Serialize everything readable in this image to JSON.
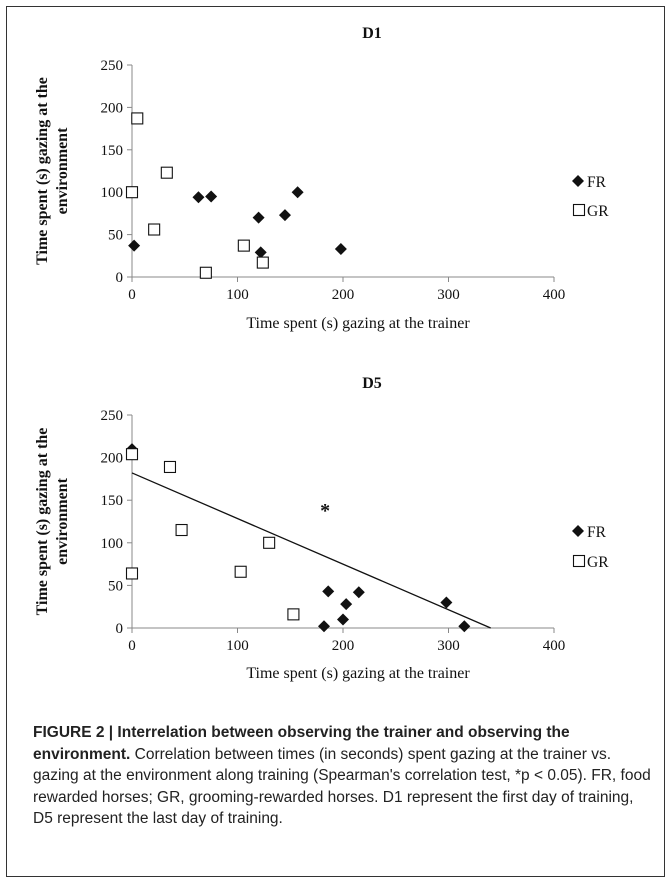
{
  "chart_data": [
    {
      "type": "scatter",
      "title": "D1",
      "xlabel": "Time spent (s) gazing at the trainer",
      "ylabel_lines": [
        "Time spent (s) gazing at the",
        "environment"
      ],
      "xlim": [
        0,
        400
      ],
      "ylim": [
        0,
        250
      ],
      "xticks": [
        0,
        100,
        200,
        300,
        400
      ],
      "yticks": [
        0,
        50,
        100,
        150,
        200,
        250
      ],
      "legend_position": "right",
      "annotation": "",
      "trendline": null,
      "series": [
        {
          "name": "FR",
          "marker": "filled-diamond",
          "points": [
            [
              2,
              37
            ],
            [
              63,
              94
            ],
            [
              75,
              95
            ],
            [
              120,
              70
            ],
            [
              122,
              29
            ],
            [
              145,
              73
            ],
            [
              157,
              100
            ],
            [
              198,
              33
            ]
          ]
        },
        {
          "name": "GR",
          "marker": "open-square",
          "points": [
            [
              5,
              187
            ],
            [
              0,
              100
            ],
            [
              33,
              123
            ],
            [
              21,
              56
            ],
            [
              70,
              5
            ],
            [
              106,
              37
            ],
            [
              124,
              17
            ]
          ]
        }
      ]
    },
    {
      "type": "scatter",
      "title": "D5",
      "xlabel": "Time spent (s) gazing at the trainer",
      "ylabel_lines": [
        "Time spent (s) gazing at the",
        "environment"
      ],
      "xlim": [
        0,
        400
      ],
      "ylim": [
        0,
        250
      ],
      "xticks": [
        0,
        100,
        200,
        300,
        400
      ],
      "yticks": [
        0,
        50,
        100,
        150,
        200,
        250
      ],
      "legend_position": "right",
      "annotation": "*",
      "annotation_at": [
        183,
        130
      ],
      "trendline": {
        "x": [
          0,
          340
        ],
        "y": [
          182,
          0
        ]
      },
      "series": [
        {
          "name": "FR",
          "marker": "filled-diamond",
          "points": [
            [
              0,
              210
            ],
            [
              182,
              2
            ],
            [
              186,
              43
            ],
            [
              200,
              10
            ],
            [
              203,
              28
            ],
            [
              215,
              42
            ],
            [
              298,
              30
            ],
            [
              315,
              2
            ]
          ]
        },
        {
          "name": "GR",
          "marker": "open-square",
          "points": [
            [
              0,
              204
            ],
            [
              36,
              189
            ],
            [
              47,
              115
            ],
            [
              0,
              64
            ],
            [
              103,
              66
            ],
            [
              130,
              100
            ],
            [
              153,
              16
            ]
          ]
        }
      ]
    }
  ],
  "caption": {
    "bold": "FIGURE 2 | Interrelation between observing the trainer and observing the environment.",
    "text": " Correlation between times (in seconds) spent gazing at the trainer vs. gazing at the environment along training (Spearman's correlation test, *p < 0.05). FR, food rewarded horses; GR, grooming-rewarded horses. D1 represent the first day of training, D5 represent the last day of training."
  },
  "colors": {
    "ink": "#111111",
    "axis": "#888888",
    "frame": "#333333"
  }
}
